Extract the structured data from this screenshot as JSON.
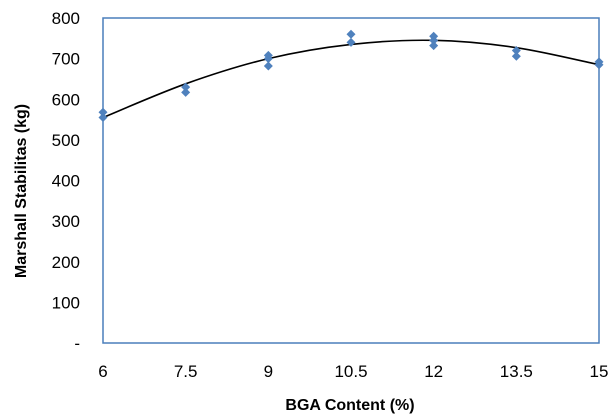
{
  "chart_data": {
    "type": "scatter",
    "xlabel": "BGA Content (%)",
    "ylabel": "Marshall Stabilitas (kg)",
    "xlim": [
      6,
      15
    ],
    "ylim": [
      0,
      800
    ],
    "x_ticks": [
      "6",
      "7.5",
      "9",
      "10.5",
      "12",
      "13.5",
      "15"
    ],
    "y_ticks": [
      {
        "value": 0,
        "label": "-"
      },
      {
        "value": 100,
        "label": "100"
      },
      {
        "value": 200,
        "label": "200"
      },
      {
        "value": 300,
        "label": "300"
      },
      {
        "value": 400,
        "label": "400"
      },
      {
        "value": 500,
        "label": "500"
      },
      {
        "value": 600,
        "label": "600"
      },
      {
        "value": 700,
        "label": "700"
      },
      {
        "value": 800,
        "label": "800"
      }
    ],
    "series": [
      {
        "points": [
          {
            "x": 6,
            "y": 568
          },
          {
            "x": 6,
            "y": 555
          },
          {
            "x": 7.5,
            "y": 630
          },
          {
            "x": 7.5,
            "y": 617
          },
          {
            "x": 9,
            "y": 708
          },
          {
            "x": 9,
            "y": 700
          },
          {
            "x": 9,
            "y": 682
          },
          {
            "x": 10.5,
            "y": 760
          },
          {
            "x": 10.5,
            "y": 740
          },
          {
            "x": 12,
            "y": 755
          },
          {
            "x": 12,
            "y": 745
          },
          {
            "x": 12,
            "y": 732
          },
          {
            "x": 13.5,
            "y": 720
          },
          {
            "x": 13.5,
            "y": 706
          },
          {
            "x": 15,
            "y": 692
          },
          {
            "x": 15,
            "y": 685
          }
        ]
      }
    ],
    "trendline": {
      "type": "polynomial-2",
      "points": [
        {
          "x": 6,
          "y": 555
        },
        {
          "x": 7.5,
          "y": 638
        },
        {
          "x": 9,
          "y": 700
        },
        {
          "x": 10.5,
          "y": 735
        },
        {
          "x": 12,
          "y": 745
        },
        {
          "x": 13.5,
          "y": 727
        },
        {
          "x": 15,
          "y": 685
        }
      ]
    },
    "grid": false,
    "legend": "none",
    "colors": {
      "marker": "#4f81bd",
      "trendline": "#000000",
      "frame": "#4a7ebb"
    }
  }
}
